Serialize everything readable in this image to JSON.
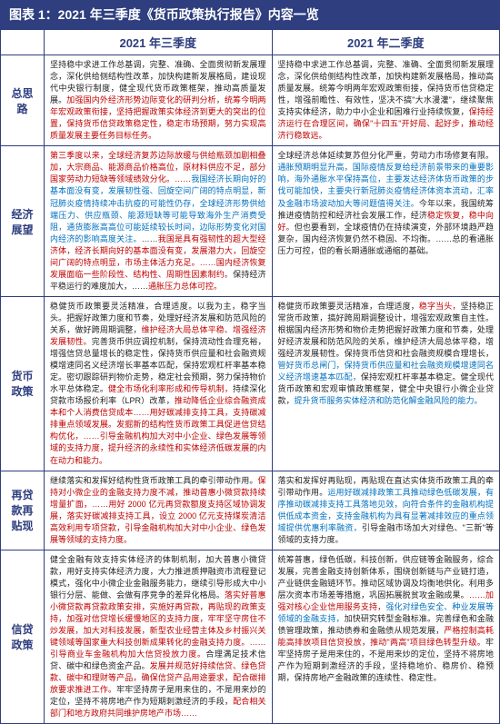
{
  "title": "图表 1：2021 年三季度《货币政策执行报告》内容一览",
  "colhead_left": "2021 年三季度",
  "colhead_right": "2021 年二季度",
  "rows": [
    {
      "head": "总思路",
      "left": [
        {
          "t": "坚持稳中求进工作总基调，完整、准确、全面贯彻新发展理念，深化供给侧结构性改革，加快构建新发展格局，建设现代中央银行制度，健全现代货币政策框架，推动高质量发展。",
          "c": ""
        },
        {
          "t": "加强国内外经济形势边际变化的研判分析，统筹今明两年宏观政策衔接，坚持把握政策实体经济到更大的突出的位置，保持货币信贷政策稳定性，稳定市场预期，努力实现高质量发展主要任务目标任务。",
          "c": "red"
        }
      ],
      "right": [
        {
          "t": "坚持稳中求进工作总基调，完整、准确、全面贯彻新发展理念，深化供给侧结构性改革，加快构建新发展格局，推动高质量发展。统筹今明两年宏观政策衔接，保持货币信贷稳定性，增强前瞻性、有效性，坚决不搞\"大水漫灌\"，继续聚焦支持实体经济，助力中小企业和困难行业持续恢复，",
          "c": ""
        },
        {
          "t": "保持经济运行在合理区间，确保\"十四五\"开好局、起好步，推动经济行稳致远。",
          "c": "red"
        }
      ]
    },
    {
      "head": "经济展望",
      "left": [
        {
          "t": "第三季度以来，全球经济复苏边际放缓与供给瓶颈加剧相叠加，大宗商品、能源商品价格高位，原材料供应不足，部分国家劳动力短缺等领域绩效分化。……",
          "c": "red"
        },
        {
          "t": "我国经济长期向好的基本面没有变，发展韧性强、回旋空间广阔的特点明显，新冠肺炎疫情持续冲击抗疫的可能性仍存，全球经济形势供给端压力、供应瓶颈、能源短缺等可能导致海外生产消费受阻，通货膨胀高高位可能延续较长时间，边际形势变化对国内经济的影响高度关注。",
          "c": "blue"
        },
        {
          "t": "……",
          "c": ""
        },
        {
          "t": "我国是具有强韧性的超大型经济体，经济长期向好的基本面没有变，发展潜力大，回旋空间广阔的特点明显，市场主体活力充足。……国内经济恢复发展面临一些阶段性、结构性、周期性因素制约。",
          "c": "red"
        },
        {
          "t": "保持经济平稳运行的难度加大，……",
          "c": ""
        },
        {
          "t": "通胀压力总体可控。",
          "c": "red"
        }
      ],
      "right": [
        {
          "t": "全球经济总体延续复苏但分化严重，劳动力市场修复有限。",
          "c": ""
        },
        {
          "t": "通胀预期明显升高，国际疫情反复给经济前景带来的重要影响，海外通胀水平保持高位，主要发达经济体货币政策的步伐可能加快，主要央行新冠肺炎疫情经济体资本流动，汇率及金融市场波动加大等问题值得关注。",
          "c": "blue"
        },
        {
          "t": "今年以来，我国统筹推进疫情防控和经济社会发展工作，经济",
          "c": ""
        },
        {
          "t": "稳定恢复，稳中向好。",
          "c": "red"
        },
        {
          "t": "但也要看到，全球疫情仍在持续演变，外部环境趋严趋复杂，国内经济恢复仍然不稳固、不均衡。……总的看通胀压力可控，但的看长期通胀或通缩的基础。",
          "c": ""
        }
      ]
    },
    {
      "head": "货币政策",
      "left": [
        {
          "t": "稳健货币政策要灵活精准，合理适度。以我为主，稳字当头。把握好政策力度和节奏，处理好经济发展和防范风险的关系，做好跨周期调整，",
          "c": ""
        },
        {
          "t": "维护经济大局总体平稳、增强经济发展韧性。",
          "c": "red"
        },
        {
          "t": "完善货币供应调控机制，保持流动性合理充裕，增强信贷总量增长的稳定性，保持货币供应量和社会融资规模增速同名义经济增长率基本匹配，保持宏观杠杆率基本稳定。密切跟踪研判物价走势，稳定社会预期，努力保持物价水平总体稳定。",
          "c": ""
        },
        {
          "t": "健全市场化利率形成和传导机制，",
          "c": "red"
        },
        {
          "t": "持续深化贷款市场报价利率（LPR）改革，",
          "c": ""
        },
        {
          "t": "推动降低企业综合融资成本和个人消费信贷成本……用好碳减排支持工具，支持碳减排重点领域发展。发掘新的结构性货币政策工具促进信贷结构优化，……引导金融机构加大对中小企业、绿色发展等领域的支持力度，提升经济的永续性和实体经济低碳发展的内在动力和能力。",
          "c": "red"
        }
      ],
      "right": [
        {
          "t": "稳健货币政策要灵活精准，合理适度，",
          "c": ""
        },
        {
          "t": "稳字当头，",
          "c": "red"
        },
        {
          "t": "坚持稳正常货币政策，搞好跨周期调整设计，增强宏观政策自主性。根据国内经济形势和物价走势把握好政策力度和节奏，处理好经济发展和防范风险的关系，维护经济大局总体平稳，增强经济发展韧性。",
          "c": ""
        },
        {
          "t": "保持货币信贷和社会融资规模合理增长，",
          "c": ""
        },
        {
          "t": "管好货币总闸门，保持货币供应量和社会融资规模增速同名义经济增速基本匹配，",
          "c": "blue"
        },
        {
          "t": "保持宏观杠杆率基本稳定。健全现代货币政策和宏观审慎政策框架，健全中央银行小微企业贷款，",
          "c": ""
        },
        {
          "t": "提升货币服务实体经济和防范化解金融风险的能力。",
          "c": "blue"
        }
      ]
    },
    {
      "head": "再贷款再贴现",
      "left": [
        {
          "t": "继续落实和发挥好结构性货币政策工具的牵引带动作用。",
          "c": ""
        },
        {
          "t": "保持对小微企业的金融支持力度不减，推动普惠小微贷款持续增量扩面，……用好 2000 亿元再贷款额度支持区域协调发展，落实好碳减排支持工具，设立 2000 亿元支持煤炭清洁高效利用专项贷款，引导金融机构加大对中小企业、绿色发展等领域的支持力度。",
          "c": "red"
        }
      ],
      "right": [
        {
          "t": "落实和发挥好再贴现，再贴现在直达实体货币政策工具的牵引带动作用。",
          "c": ""
        },
        {
          "t": "运用好碳减排政策工具推动绿色低碳发展，有序推动碳减排支持工具落地见效，向符合条件的金融机构提供低成本资金，支持金融机构为具有显著减排效应的重点领域提供优惠利率融资，",
          "c": "blue"
        },
        {
          "t": "引导金融市场加大对绿色、\"三新\"等领域的支持力度。",
          "c": ""
        }
      ]
    },
    {
      "head": "信贷政策",
      "left": [
        {
          "t": "健全金融有效支持实体经济的体制机制，加大普惠小微贷款，用好支持实体经济力度，大力推进质押融资市流程登记模式，强化中小微企业金融服务能力，继续引导形成大中小银行分层、能做、会做有序竞争的差异化格局。",
          "c": ""
        },
        {
          "t": "落实好普惠小微贷款再贷款政策安排，实施好再贷款，再贴现的政策支持，加强对信贷增长缓慢地区的支持力度，牢牢坚守房住不炒发展，加大对科技发展，新型农业经营主体及乡村振兴关键领域等国家重大科技创新成果转化的金融支持力度。……引导商业车金融机构加大信贷投放力度。",
          "c": "red"
        },
        {
          "t": "合理满足技术信贷、碳中和绿色资金产品。",
          "c": ""
        },
        {
          "t": "发展并规范好持续信贷、绿色贷款、碳中和理财等产品，确保信贷产品用途要求，配合碳排放要求推进工作。",
          "c": "red"
        },
        {
          "t": "牢牢坚持房子是用来住的，不是用来炒的定位，坚持不将房地产作为短期刺激经济的手段，",
          "c": ""
        },
        {
          "t": "配合相关部门和地方政府共同维护房地产市场……",
          "c": "red"
        }
      ],
      "right": [
        {
          "t": "统筹普惠，绿色低碳，科技创新，供应链等金融服务，综合发展，完善金融支持创新体系，围绕创新链与产业链打造，产业链供金融链环节。",
          "c": ""
        },
        {
          "t": "推动区域协调及均衡地供化。利用多层次资本市场差等措施，巩固拓展脱贫攻金融成果。",
          "c": ""
        },
        {
          "t": "……加强对核心企业信用服务支持，",
          "c": "red"
        },
        {
          "t": "强化对绿色安全、种业发展等领域的金融支持，",
          "c": "blue"
        },
        {
          "t": "加快研究转型金融标准。",
          "c": ""
        },
        {
          "t": "完善绿色和金融债管理政策，推动债券和金融债从规范发展，",
          "c": ""
        },
        {
          "t": "严格控制高耗能高排放项目信贷投放，推动\"两高\"项目绿色转型升级。",
          "c": "red"
        },
        {
          "t": "牢牢坚持房子是用来住的，不是用来炒的定位，坚持不将房地产作为短期刺激经济的手段，坚持稳地价、稳房价、稳预期，保持房地产金融政策的连续性、稳定性。",
          "c": ""
        }
      ]
    }
  ]
}
